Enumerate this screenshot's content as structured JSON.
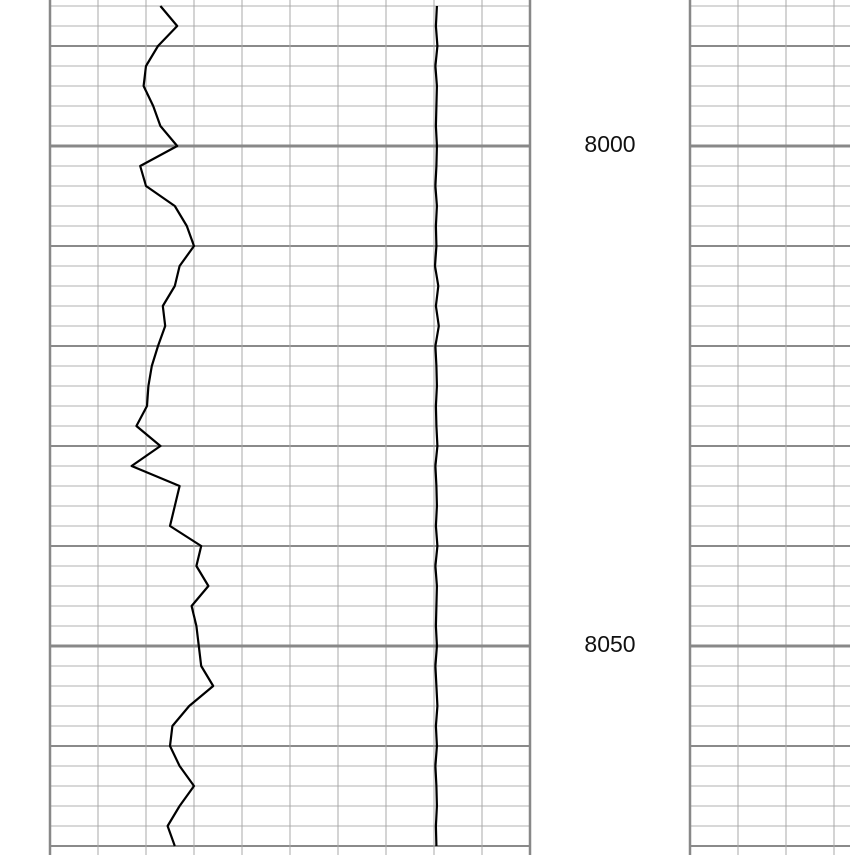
{
  "chart_data": {
    "type": "well_log",
    "ylim": [
      7985.4,
      8070.9
    ],
    "yticks": [
      8000,
      8050
    ],
    "xlim": [
      0,
      10
    ],
    "x": [
      7986,
      7988,
      7990,
      7992,
      7994,
      7996,
      7998,
      8000,
      8002,
      8004,
      8006,
      8008,
      8010,
      8012,
      8014,
      8016,
      8018,
      8020,
      8022,
      8024,
      8026,
      8028,
      8030,
      8032,
      8034,
      8036,
      8038,
      8040,
      8042,
      8044,
      8046,
      8048,
      8050,
      8052,
      8054,
      8056,
      8058,
      8060,
      8062,
      8064,
      8066,
      8068,
      8070
    ],
    "series": [
      {
        "color": "#000000",
        "values": [
          2.3,
          2.65,
          2.25,
          2.0,
          1.95,
          2.15,
          2.3,
          2.65,
          1.88,
          2.0,
          2.6,
          2.85,
          3.0,
          2.7,
          2.6,
          2.35,
          2.4,
          2.25,
          2.12,
          2.05,
          2.02,
          1.8,
          2.3,
          1.7,
          2.7,
          2.6,
          2.5,
          3.15,
          3.05,
          3.3,
          2.95,
          3.05,
          3.1,
          3.15,
          3.4,
          2.9,
          2.55,
          2.5,
          2.7,
          3.0,
          2.7,
          2.45,
          2.6
        ]
      },
      {
        "color": "#000000",
        "values": [
          8.06,
          8.04,
          8.07,
          8.03,
          8.06,
          8.05,
          8.04,
          8.06,
          8.05,
          8.03,
          8.06,
          8.04,
          8.05,
          8.02,
          8.09,
          8.04,
          8.1,
          8.03,
          8.05,
          8.06,
          8.04,
          8.05,
          8.07,
          8.03,
          8.05,
          8.06,
          8.04,
          8.07,
          8.03,
          8.06,
          8.05,
          8.04,
          8.06,
          8.03,
          8.05,
          8.07,
          8.04,
          8.06,
          8.03,
          8.05,
          8.06,
          8.04,
          8.05
        ]
      }
    ]
  }
}
